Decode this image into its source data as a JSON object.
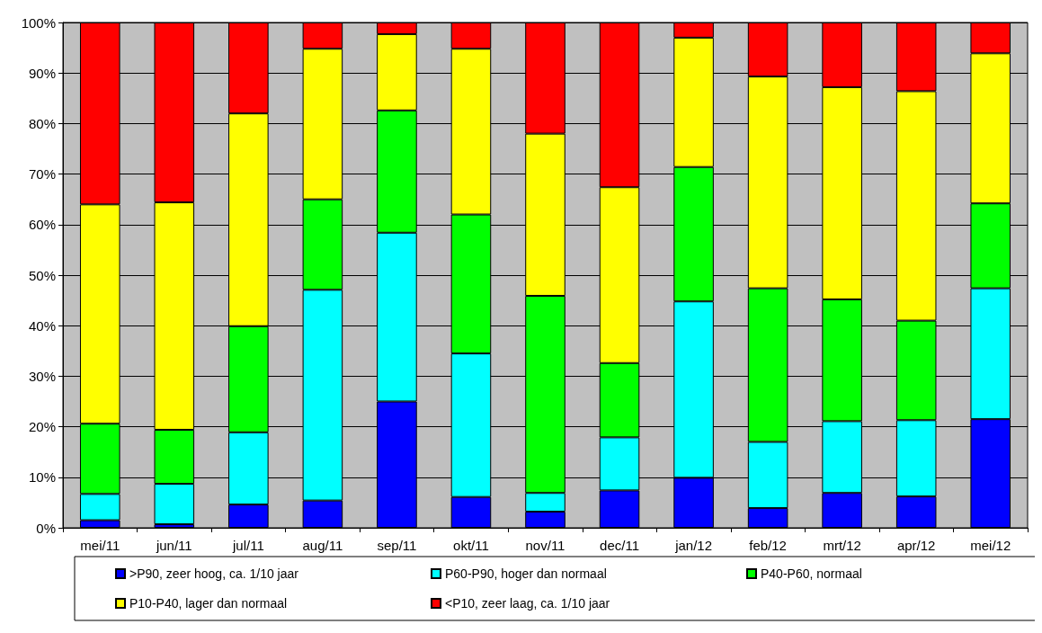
{
  "chart_data": {
    "type": "bar",
    "stacked": true,
    "categories": [
      "mei/11",
      "jun/11",
      "jul/11",
      "aug/11",
      "sep/11",
      "okt/11",
      "nov/11",
      "dec/11",
      "jan/12",
      "feb/12",
      "mrt/12",
      "apr/12",
      "mei/12"
    ],
    "series": [
      {
        "name": ">P90, zeer hoog, ca. 1/10 jaar",
        "color": "#0000ff",
        "values": [
          1.5,
          0.7,
          4.6,
          5.4,
          25,
          6.1,
          3.2,
          7.4,
          9.9,
          3.9,
          6.9,
          6.2,
          21.5
        ]
      },
      {
        "name": "P60-P90, hoger dan normaal",
        "color": "#00ffff",
        "values": [
          5.2,
          8.0,
          14.3,
          41.7,
          33.4,
          28.4,
          3.7,
          10.5,
          34.9,
          13.1,
          14.2,
          15.1,
          25.9
        ]
      },
      {
        "name": "P40-P60, normaal",
        "color": "#00ff00",
        "values": [
          13.9,
          10.7,
          21.0,
          17.9,
          24.2,
          27.5,
          39.0,
          14.7,
          26.6,
          30.4,
          24.1,
          19.7,
          16.8
        ]
      },
      {
        "name": "P10-P40, lager dan normaal",
        "color": "#ffff00",
        "values": [
          43.4,
          45.0,
          42.1,
          29.8,
          15.1,
          32.8,
          32.1,
          34.8,
          25.6,
          41.9,
          42.0,
          45.4,
          29.7
        ]
      },
      {
        "name": "<P10, zeer laag, ca. 1/10 jaar",
        "color": "#ff0000",
        "values": [
          36.0,
          35.6,
          18.0,
          5.2,
          2.3,
          5.2,
          22.0,
          32.6,
          3.0,
          10.7,
          12.8,
          13.6,
          6.1
        ]
      }
    ],
    "ylim": [
      0,
      100
    ],
    "yticks": [
      {
        "value": 0,
        "label": "0%"
      },
      {
        "value": 10,
        "label": "10%"
      },
      {
        "value": 20,
        "label": "20%"
      },
      {
        "value": 30,
        "label": "30%"
      },
      {
        "value": 40,
        "label": "40%"
      },
      {
        "value": 50,
        "label": "50%"
      },
      {
        "value": 60,
        "label": "60%"
      },
      {
        "value": 70,
        "label": "70%"
      },
      {
        "value": 80,
        "label": "80%"
      },
      {
        "value": 90,
        "label": "90%"
      },
      {
        "value": 100,
        "label": "100%"
      }
    ],
    "grid": "y",
    "legend": "bottom"
  }
}
